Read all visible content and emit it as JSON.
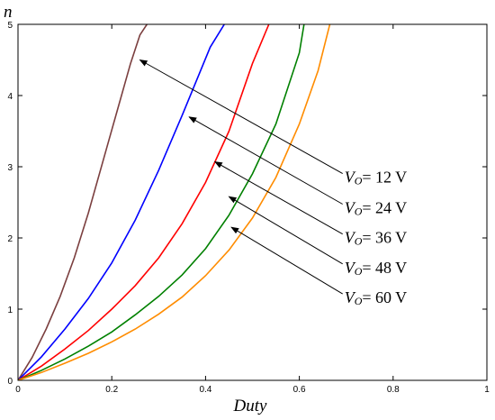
{
  "chart_data": {
    "type": "line",
    "xlabel": "Duty",
    "ylabel": "n",
    "xlim": [
      0,
      1
    ],
    "ylim": [
      0,
      5
    ],
    "xticks": [
      "0",
      "0.2",
      "0.4",
      "0.6",
      "0.8",
      "1"
    ],
    "yticks": [
      "0",
      "1",
      "2",
      "3",
      "4",
      "5"
    ],
    "grid": false,
    "colors": {
      "12": "#7b3f3f",
      "24": "#0000ff",
      "36": "#ff0000",
      "48": "#008000",
      "60": "#ff8c00"
    },
    "series": [
      {
        "vo": "12",
        "x": [
          0,
          0.03,
          0.06,
          0.09,
          0.12,
          0.15,
          0.18,
          0.21,
          0.24,
          0.26,
          0.275
        ],
        "y": [
          0,
          0.32,
          0.72,
          1.18,
          1.72,
          2.35,
          3.05,
          3.75,
          4.45,
          4.85,
          5.0
        ]
      },
      {
        "vo": "24",
        "x": [
          0,
          0.05,
          0.1,
          0.15,
          0.2,
          0.25,
          0.3,
          0.35,
          0.38,
          0.41,
          0.44
        ],
        "y": [
          0,
          0.33,
          0.72,
          1.15,
          1.65,
          2.25,
          2.95,
          3.72,
          4.2,
          4.68,
          5.0
        ]
      },
      {
        "vo": "36",
        "x": [
          0,
          0.05,
          0.1,
          0.15,
          0.2,
          0.25,
          0.3,
          0.35,
          0.4,
          0.45,
          0.5,
          0.535
        ],
        "y": [
          0,
          0.2,
          0.44,
          0.7,
          1.0,
          1.33,
          1.72,
          2.2,
          2.78,
          3.5,
          4.45,
          5.0
        ]
      },
      {
        "vo": "48",
        "x": [
          0,
          0.05,
          0.1,
          0.15,
          0.2,
          0.25,
          0.3,
          0.35,
          0.4,
          0.45,
          0.5,
          0.55,
          0.6,
          0.61
        ],
        "y": [
          0,
          0.14,
          0.3,
          0.48,
          0.68,
          0.92,
          1.18,
          1.48,
          1.85,
          2.32,
          2.9,
          3.6,
          4.6,
          5.0
        ]
      },
      {
        "vo": "60",
        "x": [
          0,
          0.05,
          0.1,
          0.15,
          0.2,
          0.25,
          0.3,
          0.35,
          0.4,
          0.45,
          0.5,
          0.55,
          0.6,
          0.64,
          0.665
        ],
        "y": [
          0,
          0.11,
          0.24,
          0.38,
          0.54,
          0.72,
          0.93,
          1.17,
          1.47,
          1.83,
          2.28,
          2.85,
          3.6,
          4.35,
          5.0
        ]
      }
    ],
    "annotations": [
      {
        "prefix": "V",
        "sub": "O",
        "text": "= 12 V",
        "point": [
          0.26,
          4.5
        ],
        "label": [
          0.7,
          2.93
        ]
      },
      {
        "prefix": "V",
        "sub": "O",
        "text": "= 24 V",
        "point": [
          0.365,
          3.7
        ],
        "label": [
          0.7,
          2.5
        ]
      },
      {
        "prefix": "V",
        "sub": "O",
        "text": "= 36 V",
        "point": [
          0.42,
          3.07
        ],
        "label": [
          0.7,
          2.08
        ]
      },
      {
        "prefix": "V",
        "sub": "O",
        "text": "= 48 V",
        "point": [
          0.45,
          2.58
        ],
        "label": [
          0.7,
          1.66
        ]
      },
      {
        "prefix": "V",
        "sub": "O",
        "text": "= 60 V",
        "point": [
          0.455,
          2.15
        ],
        "label": [
          0.7,
          1.24
        ]
      }
    ]
  }
}
